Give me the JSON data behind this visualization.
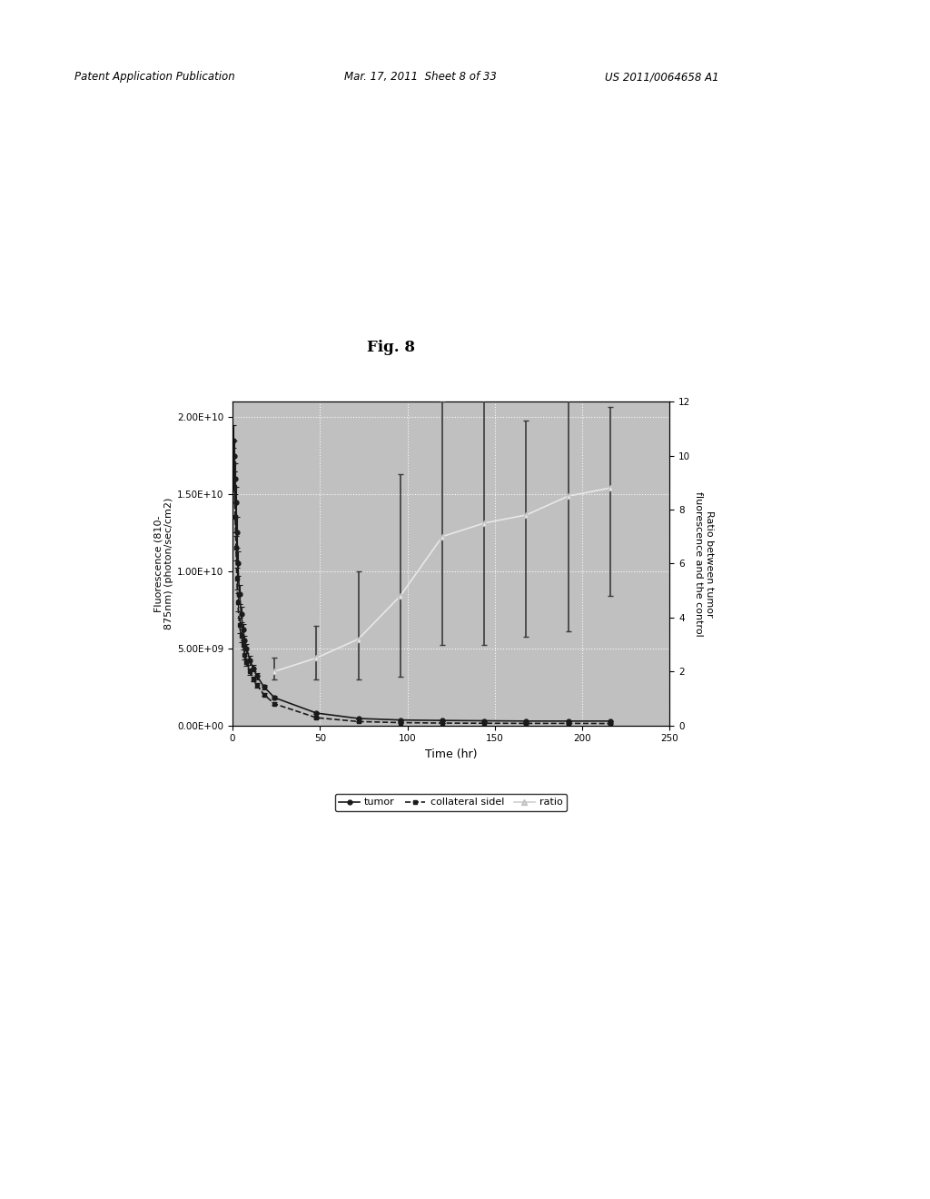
{
  "title": "Fig. 8",
  "xlabel": "Time (hr)",
  "ylabel_left": "Fluorescence (810-\n875nm) (photon/sec/cm2)",
  "ylabel_right": "Ratio between tumor\nfluorescence and the control",
  "xlim": [
    0,
    250
  ],
  "ylim_left": [
    0,
    21000000000.0
  ],
  "ylim_right": [
    0,
    12
  ],
  "yticks_left": [
    0,
    5000000000.0,
    10000000000.0,
    15000000000.0,
    20000000000.0
  ],
  "ytick_labels_left": [
    "0.00E+00",
    "5.00E+09",
    "1.00E+10",
    "1.50E+10",
    "2.00E+10"
  ],
  "yticks_right": [
    0,
    2,
    4,
    6,
    8,
    10,
    12
  ],
  "xticks": [
    0,
    50,
    100,
    150,
    200,
    250
  ],
  "background_color": "#c0c0c0",
  "tumor_x": [
    0.5,
    1,
    1.5,
    2,
    2.5,
    3,
    4,
    5,
    6,
    7,
    8,
    10,
    12,
    14,
    18,
    24,
    48,
    72,
    96,
    120,
    144,
    168,
    192,
    216
  ],
  "tumor_y": [
    18500000000.0,
    17500000000.0,
    16000000000.0,
    14500000000.0,
    12500000000.0,
    10500000000.0,
    8500000000.0,
    7200000000.0,
    6200000000.0,
    5500000000.0,
    5000000000.0,
    4200000000.0,
    3700000000.0,
    3200000000.0,
    2500000000.0,
    1800000000.0,
    800000000.0,
    450000000.0,
    350000000.0,
    320000000.0,
    300000000.0,
    280000000.0,
    280000000.0,
    280000000.0
  ],
  "tumor_yerr_low": [
    1000000000.0,
    1000000000.0,
    1000000000.0,
    1000000000.0,
    1000000000.0,
    800000000.0,
    600000000.0,
    500000000.0,
    400000000.0,
    300000000.0,
    300000000.0,
    300000000.0,
    200000000.0,
    200000000.0,
    150000000.0,
    100000000.0,
    50000000.0,
    30000000.0,
    20000000.0,
    20000000.0,
    20000000.0,
    20000000.0,
    20000000.0,
    20000000.0
  ],
  "tumor_yerr_high": [
    1000000000.0,
    1000000000.0,
    1000000000.0,
    1000000000.0,
    1000000000.0,
    800000000.0,
    600000000.0,
    500000000.0,
    400000000.0,
    300000000.0,
    300000000.0,
    300000000.0,
    200000000.0,
    200000000.0,
    150000000.0,
    100000000.0,
    50000000.0,
    30000000.0,
    20000000.0,
    20000000.0,
    20000000.0,
    20000000.0,
    20000000.0,
    20000000.0
  ],
  "collateral_x": [
    0.5,
    1,
    1.5,
    2,
    2.5,
    3,
    4,
    5,
    6,
    7,
    8,
    10,
    12,
    14,
    18,
    24,
    48,
    72,
    96,
    120,
    144,
    168,
    192,
    216
  ],
  "collateral_y": [
    17000000000.0,
    15500000000.0,
    13500000000.0,
    11500000000.0,
    9500000000.0,
    8000000000.0,
    6500000000.0,
    5800000000.0,
    5200000000.0,
    4600000000.0,
    4100000000.0,
    3500000000.0,
    3000000000.0,
    2600000000.0,
    2000000000.0,
    1400000000.0,
    500000000.0,
    250000000.0,
    180000000.0,
    150000000.0,
    140000000.0,
    130000000.0,
    130000000.0,
    120000000.0
  ],
  "collateral_yerr_low": [
    1000000000.0,
    1000000000.0,
    1000000000.0,
    800000000.0,
    700000000.0,
    600000000.0,
    500000000.0,
    400000000.0,
    300000000.0,
    300000000.0,
    250000000.0,
    200000000.0,
    150000000.0,
    150000000.0,
    100000000.0,
    80000000.0,
    40000000.0,
    20000000.0,
    15000000.0,
    10000000.0,
    10000000.0,
    10000000.0,
    10000000.0,
    10000000.0
  ],
  "collateral_yerr_high": [
    1000000000.0,
    1000000000.0,
    1000000000.0,
    800000000.0,
    700000000.0,
    600000000.0,
    500000000.0,
    400000000.0,
    300000000.0,
    300000000.0,
    250000000.0,
    200000000.0,
    150000000.0,
    150000000.0,
    100000000.0,
    80000000.0,
    40000000.0,
    20000000.0,
    15000000.0,
    10000000.0,
    10000000.0,
    10000000.0,
    10000000.0,
    10000000.0
  ],
  "ratio_x": [
    24,
    48,
    72,
    96,
    120,
    144,
    168,
    192,
    216
  ],
  "ratio_y": [
    2.0,
    2.5,
    3.2,
    4.8,
    7.0,
    7.5,
    7.8,
    8.5,
    8.8
  ],
  "ratio_yerr_low": [
    0.3,
    0.8,
    1.5,
    3.0,
    4.0,
    4.5,
    4.5,
    5.0,
    4.0
  ],
  "ratio_yerr_high": [
    0.5,
    1.2,
    2.5,
    4.5,
    5.0,
    5.5,
    3.5,
    4.0,
    3.0
  ],
  "tumor_color": "#1a1a1a",
  "collateral_color": "#1a1a1a",
  "patent_header": "Patent Application Publication",
  "patent_date": "Mar. 17, 2011  Sheet 8 of 33",
  "patent_number": "US 2011/0064658 A1"
}
